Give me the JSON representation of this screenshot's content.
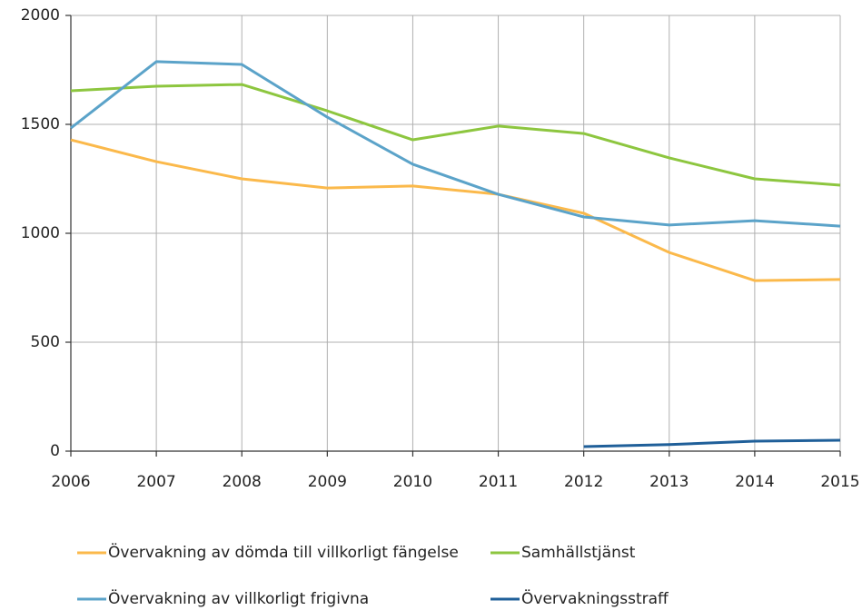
{
  "chart_data": {
    "type": "line",
    "x": [
      2006,
      2007,
      2008,
      2009,
      2010,
      2011,
      2012,
      2013,
      2014,
      2015
    ],
    "series": [
      {
        "name": "Övervakning av dömda till villkorligt fängelse",
        "color": "#fbb94b",
        "values": [
          1429,
          1329,
          1250,
          1208,
          1217,
          1179,
          1092,
          912,
          783,
          788
        ]
      },
      {
        "name": "Samhällstjänst",
        "color": "#8dc63f",
        "values": [
          1654,
          1675,
          1683,
          1562,
          1429,
          1492,
          1458,
          1346,
          1250,
          1221
        ]
      },
      {
        "name": "Övervakning av villkorligt frigivna",
        "color": "#5ba3c9",
        "values": [
          1483,
          1788,
          1775,
          1533,
          1317,
          1179,
          1075,
          1038,
          1058,
          1033
        ]
      },
      {
        "name": "Övervakningsstraff",
        "color": "#1f5f99",
        "values": [
          null,
          null,
          null,
          null,
          null,
          null,
          21,
          30,
          46,
          50
        ]
      }
    ],
    "xlim": [
      2006,
      2015
    ],
    "xticks": [
      2006,
      2007,
      2008,
      2009,
      2010,
      2011,
      2012,
      2013,
      2014,
      2015
    ],
    "ylim": [
      0,
      2000
    ],
    "yticks": [
      0,
      500,
      1000,
      1500,
      2000
    ],
    "grid": true,
    "legend": "bottom"
  }
}
